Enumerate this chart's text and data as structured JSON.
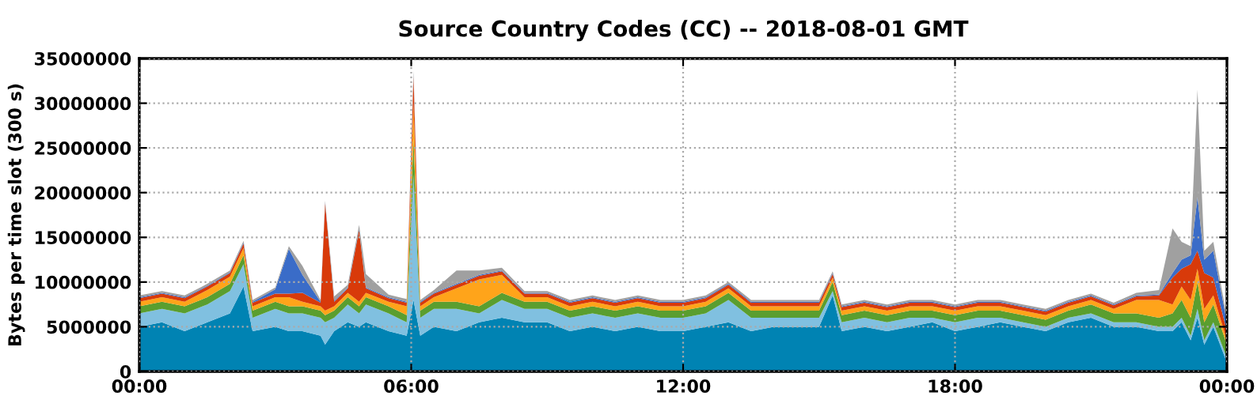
{
  "chart_data": {
    "type": "area",
    "stacked": true,
    "title": "Source Country Codes (CC) -- 2018-08-01 GMT",
    "ylabel": "Bytes per time slot (300 s)",
    "x": [
      0,
      0.5,
      1,
      1.5,
      2,
      2.3,
      2.5,
      3,
      3.3,
      3.6,
      4,
      4.1,
      4.3,
      4.6,
      4.85,
      5,
      5.5,
      5.9,
      6.05,
      6.2,
      6.5,
      7,
      7.5,
      8,
      8.5,
      9,
      9.5,
      10,
      10.5,
      11,
      11.5,
      12,
      12.5,
      13,
      13.5,
      14,
      14.5,
      15,
      15.3,
      15.5,
      16,
      16.5,
      17,
      17.5,
      18,
      18.5,
      19,
      19.5,
      20,
      20.5,
      21,
      21.5,
      22,
      22.5,
      22.8,
      23,
      23.2,
      23.35,
      23.5,
      23.7,
      24
    ],
    "series": [
      {
        "color": "#0083b3",
        "values": [
          5000000.0,
          5500000.0,
          4500000.0,
          5500000.0,
          6500000.0,
          9500000.0,
          4500000.0,
          5000000.0,
          4500000.0,
          4500000.0,
          4000000.0,
          3000000.0,
          4500000.0,
          5500000.0,
          5000000.0,
          5500000.0,
          4500000.0,
          4000000.0,
          8000000.0,
          4000000.0,
          5000000.0,
          4500000.0,
          5500000.0,
          6000000.0,
          5500000.0,
          5500000.0,
          4500000.0,
          5000000.0,
          4500000.0,
          5000000.0,
          4500000.0,
          4500000.0,
          5000000.0,
          5500000.0,
          4500000.0,
          5000000.0,
          5000000.0,
          5000000.0,
          8500000.0,
          4500000.0,
          5000000.0,
          4500000.0,
          5000000.0,
          5500000.0,
          4500000.0,
          5000000.0,
          5500000.0,
          5000000.0,
          4500000.0,
          5500000.0,
          6000000.0,
          5000000.0,
          5000000.0,
          4500000.0,
          4500000.0,
          5500000.0,
          3500000.0,
          6000000.0,
          3000000.0,
          5000000.0,
          1000000.0
        ]
      },
      {
        "color": "#80c0e0",
        "values": [
          1500000.0,
          1500000.0,
          2000000.0,
          2000000.0,
          2500000.0,
          2500000.0,
          1500000.0,
          2000000.0,
          2000000.0,
          2000000.0,
          2000000.0,
          2500000.0,
          1500000.0,
          2000000.0,
          1500000.0,
          2000000.0,
          2000000.0,
          1500000.0,
          14000000.0,
          2000000.0,
          2000000.0,
          2500000.0,
          1000000.0,
          2000000.0,
          1500000.0,
          1500000.0,
          1500000.0,
          1500000.0,
          1500000.0,
          1500000.0,
          1500000.0,
          1500000.0,
          1500000.0,
          2500000.0,
          1500000.0,
          1000000.0,
          1000000.0,
          1000000.0,
          500000.0,
          1000000.0,
          1000000.0,
          1000000.0,
          1000000.0,
          500000.0,
          1000000.0,
          1000000.0,
          500000.0,
          500000.0,
          500000.0,
          500000.0,
          500000.0,
          500000.0,
          500000.0,
          500000.0,
          500000.0,
          500000.0,
          500000.0,
          1000000.0,
          500000.0,
          500000.0,
          500000.0
        ]
      },
      {
        "color": "#5a9e2f",
        "values": [
          800000.0,
          800000.0,
          800000.0,
          800000.0,
          800000.0,
          1000000.0,
          800000.0,
          800000.0,
          800000.0,
          800000.0,
          800000.0,
          800000.0,
          800000.0,
          800000.0,
          800000.0,
          800000.0,
          800000.0,
          800000.0,
          4000000.0,
          800000.0,
          800000.0,
          800000.0,
          800000.0,
          800000.0,
          800000.0,
          800000.0,
          800000.0,
          800000.0,
          800000.0,
          800000.0,
          800000.0,
          800000.0,
          800000.0,
          800000.0,
          800000.0,
          800000.0,
          800000.0,
          800000.0,
          1000000.0,
          800000.0,
          800000.0,
          800000.0,
          800000.0,
          800000.0,
          800000.0,
          800000.0,
          800000.0,
          800000.0,
          800000.0,
          800000.0,
          1000000.0,
          1000000.0,
          1000000.0,
          1000000.0,
          1500000.0,
          2000000.0,
          2000000.0,
          3000000.0,
          2000000.0,
          2000000.0,
          1500000.0
        ]
      },
      {
        "color": "#ffa41a",
        "values": [
          500000.0,
          500000.0,
          500000.0,
          800000.0,
          800000.0,
          800000.0,
          500000.0,
          500000.0,
          1000000.0,
          500000.0,
          500000.0,
          500000.0,
          500000.0,
          500000.0,
          500000.0,
          500000.0,
          500000.0,
          1000000.0,
          4000000.0,
          500000.0,
          500000.0,
          1500000.0,
          3000000.0,
          2000000.0,
          500000.0,
          500000.0,
          500000.0,
          500000.0,
          500000.0,
          500000.0,
          500000.0,
          500000.0,
          500000.0,
          500000.0,
          500000.0,
          500000.0,
          500000.0,
          500000.0,
          500000.0,
          500000.0,
          500000.0,
          500000.0,
          500000.0,
          500000.0,
          500000.0,
          500000.0,
          500000.0,
          500000.0,
          500000.0,
          500000.0,
          500000.0,
          500000.0,
          1500000.0,
          2000000.0,
          1000000.0,
          1500000.0,
          2000000.0,
          1500000.0,
          1500000.0,
          1000000.0,
          500000.0
        ]
      },
      {
        "color": "#d83a0a",
        "values": [
          400000.0,
          400000.0,
          400000.0,
          400000.0,
          400000.0,
          500000.0,
          400000.0,
          400000.0,
          400000.0,
          1000000.0,
          400000.0,
          12000000.0,
          500000.0,
          500000.0,
          8000000.0,
          500000.0,
          400000.0,
          400000.0,
          3000000.0,
          400000.0,
          400000.0,
          400000.0,
          400000.0,
          400000.0,
          400000.0,
          400000.0,
          400000.0,
          400000.0,
          400000.0,
          400000.0,
          400000.0,
          400000.0,
          400000.0,
          400000.0,
          400000.0,
          400000.0,
          400000.0,
          400000.0,
          400000.0,
          400000.0,
          400000.0,
          400000.0,
          400000.0,
          400000.0,
          400000.0,
          400000.0,
          400000.0,
          400000.0,
          400000.0,
          400000.0,
          400000.0,
          400000.0,
          400000.0,
          500000.0,
          3000000.0,
          2000000.0,
          4000000.0,
          2000000.0,
          4000000.0,
          2000000.0,
          1000000.0
        ]
      },
      {
        "color": "#3a6cc8",
        "values": [
          100000.0,
          100000.0,
          100000.0,
          100000.0,
          100000.0,
          100000.0,
          100000.0,
          500000.0,
          5000000.0,
          2000000.0,
          100000.0,
          100000.0,
          100000.0,
          100000.0,
          100000.0,
          100000.0,
          100000.0,
          100000.0,
          100000.0,
          100000.0,
          100000.0,
          100000.0,
          100000.0,
          100000.0,
          100000.0,
          100000.0,
          100000.0,
          100000.0,
          100000.0,
          100000.0,
          100000.0,
          100000.0,
          100000.0,
          100000.0,
          100000.0,
          100000.0,
          100000.0,
          100000.0,
          100000.0,
          100000.0,
          100000.0,
          100000.0,
          100000.0,
          100000.0,
          100000.0,
          100000.0,
          100000.0,
          100000.0,
          100000.0,
          100000.0,
          100000.0,
          100000.0,
          100000.0,
          100000.0,
          500000.0,
          1000000.0,
          1000000.0,
          6000000.0,
          1500000.0,
          3000000.0,
          1000000.0
        ]
      },
      {
        "color": "#a0a0a0",
        "values": [
          200000.0,
          200000.0,
          200000.0,
          200000.0,
          200000.0,
          200000.0,
          200000.0,
          200000.0,
          300000.0,
          1000000.0,
          200000.0,
          200000.0,
          500000.0,
          300000.0,
          500000.0,
          1500000.0,
          300000.0,
          300000.0,
          500000.0,
          200000.0,
          300000.0,
          1500000.0,
          500000.0,
          300000.0,
          200000.0,
          200000.0,
          200000.0,
          200000.0,
          200000.0,
          200000.0,
          200000.0,
          200000.0,
          200000.0,
          200000.0,
          200000.0,
          200000.0,
          200000.0,
          200000.0,
          200000.0,
          200000.0,
          200000.0,
          200000.0,
          200000.0,
          200000.0,
          200000.0,
          200000.0,
          200000.0,
          200000.0,
          200000.0,
          200000.0,
          200000.0,
          200000.0,
          300000.0,
          500000.0,
          5000000.0,
          2000000.0,
          1000000.0,
          12000000.0,
          1000000.0,
          1000000.0,
          500000.0
        ]
      }
    ],
    "xlim": [
      0,
      24
    ],
    "xticks": [
      {
        "value": 0,
        "label": "00:00"
      },
      {
        "value": 6,
        "label": "06:00"
      },
      {
        "value": 12,
        "label": "12:00"
      },
      {
        "value": 18,
        "label": "18:00"
      },
      {
        "value": 24,
        "label": "00:00"
      }
    ],
    "ylim": [
      0,
      35000000
    ],
    "yticks": [
      0,
      5000000,
      10000000,
      15000000,
      20000000,
      25000000,
      30000000,
      35000000
    ],
    "grid": true,
    "legend": false
  }
}
